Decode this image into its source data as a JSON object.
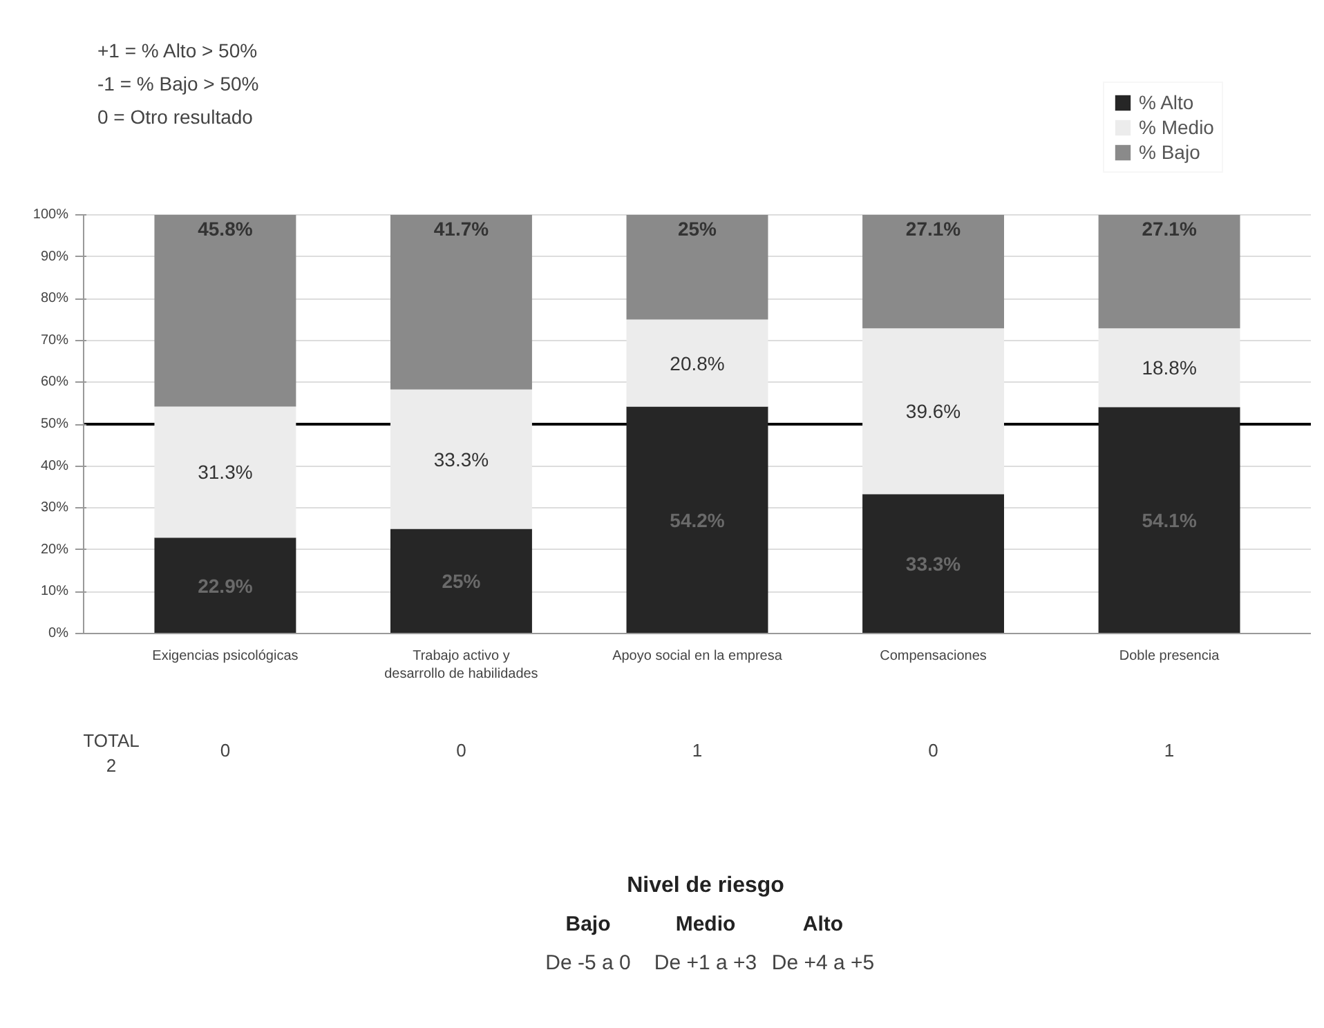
{
  "chart_data": {
    "type": "bar",
    "stacked": true,
    "categories": [
      "Exigencias psicológicas",
      "Trabajo activo y desarrollo de habilidades",
      "Apoyo social en la empresa",
      "Compensaciones",
      "Doble presencia"
    ],
    "series": [
      {
        "name": "% Alto",
        "color": "#262626",
        "values": [
          22.9,
          25,
          54.2,
          33.3,
          54.1
        ],
        "value_labels": [
          "22.9%",
          "25%",
          "54.2%",
          "33.3%",
          "54.1%"
        ]
      },
      {
        "name": "% Medio",
        "color": "#ececec",
        "values": [
          31.3,
          33.3,
          20.8,
          39.6,
          18.8
        ],
        "value_labels": [
          "31.3%",
          "33.3%",
          "20.8%",
          "39.6%",
          "18.8%"
        ]
      },
      {
        "name": "% Bajo",
        "color": "#8a8a8a",
        "values": [
          45.8,
          41.7,
          25,
          27.1,
          27.1
        ],
        "value_labels": [
          "45.8%",
          "41.7%",
          "25%",
          "27.1%",
          "27.1%"
        ]
      }
    ],
    "ylim": [
      0,
      100
    ],
    "yticks": [
      {
        "value": 0,
        "label": "0%"
      },
      {
        "value": 10,
        "label": "10%"
      },
      {
        "value": 20,
        "label": "20%"
      },
      {
        "value": 30,
        "label": "30%"
      },
      {
        "value": 40,
        "label": "40%"
      },
      {
        "value": 50,
        "label": "50%"
      },
      {
        "value": 60,
        "label": "60%"
      },
      {
        "value": 70,
        "label": "70%"
      },
      {
        "value": 80,
        "label": "80%"
      },
      {
        "value": 90,
        "label": "90%"
      },
      {
        "value": 100,
        "label": "100%"
      }
    ],
    "grid": "y",
    "legend": "top right",
    "ref_lines": [
      {
        "axis": "y",
        "value": 50,
        "color": "#000000"
      }
    ],
    "annotations": [
      "+1 = % Alto > 50%",
      "-1 = % Bajo > 50%",
      "0 = Otro resultado",
      "TOTAL\n2",
      "Nivel de riesgo",
      "Bajo",
      "Medio",
      "Alto",
      "De -5 a 0",
      "De +1 a +3",
      "De +4 a +5",
      "0",
      "0",
      "1",
      "0",
      "1"
    ]
  }
}
